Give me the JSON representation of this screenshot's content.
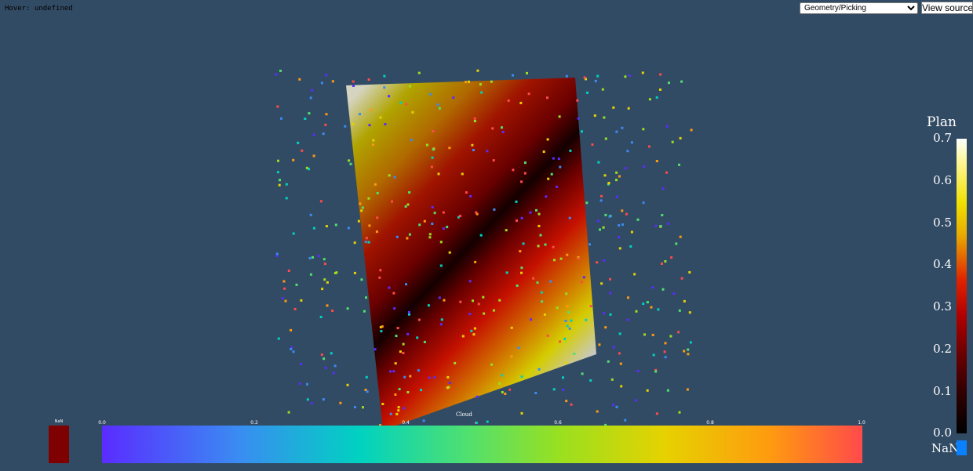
{
  "hover": {
    "text": "Hover: undefined"
  },
  "toolbar": {
    "example_select_value": "Geometry/Picking",
    "view_source_label": "View source"
  },
  "scene": {
    "cloud_label": "Cloud",
    "point_count": 480
  },
  "scalar_bar_right": {
    "title": "Plan",
    "ticks": [
      "0.7",
      "0.6",
      "0.5",
      "0.4",
      "0.3",
      "0.2",
      "0.1",
      "0.0"
    ],
    "nan_label": "NaN",
    "nan_color": "#0a82ff"
  },
  "scalar_bar_bottom": {
    "nan_label": "NaN",
    "nan_color": "#7f0000",
    "ticks": [
      "0.0",
      "0.2",
      "0.4",
      "0.6",
      "0.8",
      "1.0"
    ]
  },
  "colors": {
    "background": "#324b64",
    "plane_colormap": [
      "#c8c8c8",
      "#e8e000",
      "#a00000",
      "#000000"
    ],
    "points_colormap": [
      "#5a2cff",
      "#3a8cf2",
      "#00d2c0",
      "#50e070",
      "#98e020",
      "#e6d200",
      "#ff9a10",
      "#ff4a4a"
    ]
  }
}
